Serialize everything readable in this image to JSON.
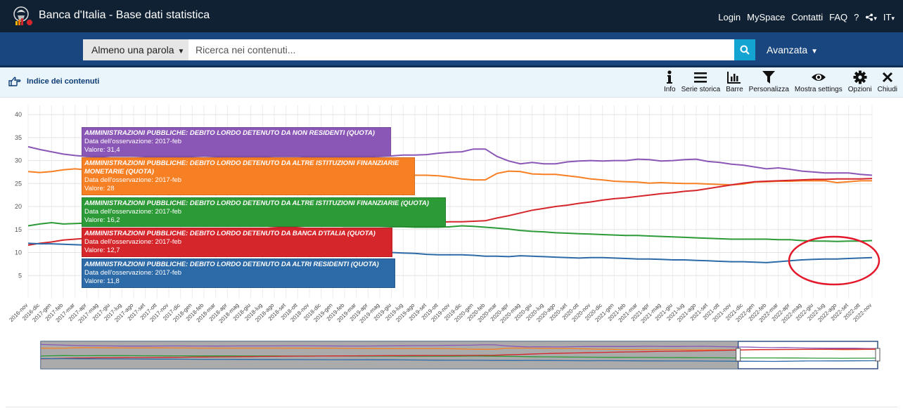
{
  "header": {
    "title": "Banca d'Italia - Base dati statistica",
    "nav": [
      "Login",
      "MySpace",
      "Contatti",
      "FAQ",
      "?"
    ],
    "share_icon": "share-icon",
    "language": "IT"
  },
  "search": {
    "mode": "Almeno una parola",
    "placeholder": "Ricerca nei contenuti...",
    "advanced": "Avanzata"
  },
  "toolbar": {
    "index_label": "Indice dei contenuti",
    "tools": [
      {
        "label": "Info",
        "icon": "info-icon"
      },
      {
        "label": "Serie storica",
        "icon": "list-icon"
      },
      {
        "label": "Barre",
        "icon": "bar-chart-icon"
      },
      {
        "label": "Personalizza",
        "icon": "filter-icon"
      },
      {
        "label": "Mostra settings",
        "icon": "eye-icon"
      },
      {
        "label": "Opzioni",
        "icon": "gear-icon"
      },
      {
        "label": "Chiudi",
        "icon": "close-icon"
      }
    ]
  },
  "tooltips": [
    {
      "title": "AMMINISTRAZIONI PUBBLICHE: DEBITO LORDO DETENUTO DA NON RESIDENTI (QUOTA)",
      "obs": "Data dell'osservazione: 2017-feb",
      "value": "Valore: 31,4",
      "color": "#8b57b6"
    },
    {
      "title": "AMMINISTRAZIONI PUBBLICHE: DEBITO LORDO DETENUTO DA ALTRE ISTITUZIONI FINANZIARIE MONETARIE (QUOTA)",
      "obs": "Data dell'osservazione: 2017-feb",
      "value": "Valore: 28",
      "color": "#f77f24"
    },
    {
      "title": "AMMINISTRAZIONI PUBBLICHE: DEBITO LORDO DETENUTO DA ALTRE ISTITUZIONI FINANZIARIE (QUOTA)",
      "obs": "Data dell'osservazione: 2017-feb",
      "value": "Valore: 16,2",
      "color": "#2c9a37"
    },
    {
      "title": "AMMINISTRAZIONI PUBBLICHE: DEBITO LORDO DETENUTO DA BANCA D'ITALIA (QUOTA)",
      "obs": "Data dell'osservazione: 2017-feb",
      "value": "Valore: 12,7",
      "color": "#d5262c"
    },
    {
      "title": "AMMINISTRAZIONI PUBBLICHE: DEBITO LORDO DETENUTO DA ALTRI RESIDENTI (QUOTA)",
      "obs": "Data dell'osservazione: 2017-feb",
      "value": "Valore: 11,8",
      "color": "#2c6aa8"
    }
  ],
  "chart_data": {
    "type": "line",
    "ylim": [
      0,
      42
    ],
    "yticks": [
      5,
      10,
      15,
      20,
      25,
      30,
      35,
      40
    ],
    "grid": true,
    "x": [
      "2016-nov",
      "2016-dic",
      "2017-gen",
      "2017-feb",
      "2017-mar",
      "2017-apr",
      "2017-mag",
      "2017-giu",
      "2017-lug",
      "2017-ago",
      "2017-set",
      "2017-ott",
      "2017-nov",
      "2017-dic",
      "2018-gen",
      "2018-feb",
      "2018-mar",
      "2018-apr",
      "2018-mag",
      "2018-giu",
      "2018-lug",
      "2018-ago",
      "2018-set",
      "2018-ott",
      "2018-nov",
      "2018-dic",
      "2019-gen",
      "2019-feb",
      "2019-mar",
      "2019-apr",
      "2019-mag",
      "2019-giu",
      "2019-lug",
      "2019-ago",
      "2019-set",
      "2019-ott",
      "2019-nov",
      "2019-dic",
      "2020-gen",
      "2020-feb",
      "2020-mar",
      "2020-apr",
      "2020-mag",
      "2020-giu",
      "2020-lug",
      "2020-ago",
      "2020-set",
      "2020-ott",
      "2020-nov",
      "2020-dic",
      "2021-gen",
      "2021-feb",
      "2021-mar",
      "2021-apr",
      "2021-mag",
      "2021-giu",
      "2021-lug",
      "2021-ago",
      "2021-set",
      "2021-ott",
      "2021-nov",
      "2021-dic",
      "2022-gen",
      "2022-feb",
      "2022-mar",
      "2022-apr",
      "2022-mag",
      "2022-giu",
      "2022-lug",
      "2022-ago",
      "2022-set",
      "2022-ott",
      "2022-nov"
    ],
    "series": [
      {
        "color": "#8b57b6",
        "values": [
          33.0,
          32.4,
          31.9,
          31.4,
          31.1,
          30.9,
          30.8,
          30.6,
          30.6,
          30.6,
          30.7,
          30.8,
          30.8,
          30.7,
          30.7,
          30.6,
          30.7,
          30.8,
          30.8,
          30.8,
          30.8,
          30.9,
          30.9,
          30.9,
          30.8,
          30.8,
          30.7,
          30.7,
          30.7,
          30.8,
          30.9,
          31.0,
          31.2,
          31.2,
          31.3,
          31.6,
          31.8,
          31.9,
          32.5,
          32.5,
          30.9,
          29.9,
          29.3,
          29.6,
          29.3,
          29.3,
          29.7,
          29.9,
          30.0,
          29.9,
          30.0,
          30.0,
          30.3,
          30.2,
          29.9,
          30.0,
          30.2,
          30.3,
          29.8,
          29.6,
          29.2,
          29.0,
          28.6,
          28.2,
          28.4,
          28.1,
          27.7,
          27.5,
          27.3,
          27.3,
          27.3,
          27.0,
          26.8
        ]
      },
      {
        "color": "#f77f24",
        "values": [
          27.6,
          27.4,
          27.6,
          28.0,
          28.2,
          28.0,
          27.9,
          27.8,
          27.8,
          27.8,
          27.9,
          27.8,
          27.7,
          27.7,
          27.6,
          27.6,
          27.6,
          27.6,
          27.6,
          27.5,
          27.5,
          27.4,
          27.4,
          27.3,
          27.3,
          27.2,
          27.1,
          27.0,
          26.9,
          26.8,
          26.8,
          26.8,
          26.8,
          26.8,
          26.8,
          26.7,
          26.4,
          26.0,
          25.8,
          25.8,
          27.2,
          27.7,
          27.6,
          27.1,
          27.0,
          27.0,
          26.7,
          26.4,
          26.0,
          25.8,
          25.5,
          25.4,
          25.3,
          25.1,
          25.2,
          25.1,
          25.0,
          25.0,
          24.9,
          24.8,
          24.7,
          24.9,
          25.3,
          25.4,
          25.5,
          25.5,
          25.6,
          25.6,
          25.6,
          25.2,
          25.4,
          25.6,
          25.6
        ]
      },
      {
        "color": "#2c9a37",
        "values": [
          15.8,
          16.2,
          16.5,
          16.2,
          16.3,
          16.4,
          16.4,
          16.4,
          16.3,
          16.2,
          16.2,
          16.1,
          16.1,
          16.0,
          16.0,
          16.0,
          16.0,
          15.9,
          15.9,
          15.9,
          15.9,
          15.8,
          15.8,
          15.8,
          15.8,
          15.8,
          15.8,
          15.7,
          15.7,
          15.7,
          15.7,
          15.6,
          15.6,
          15.5,
          15.5,
          15.5,
          15.6,
          15.8,
          15.7,
          15.5,
          15.3,
          15.1,
          14.8,
          14.6,
          14.5,
          14.3,
          14.2,
          14.1,
          14.0,
          13.9,
          13.8,
          13.7,
          13.7,
          13.6,
          13.5,
          13.4,
          13.3,
          13.2,
          13.1,
          13.0,
          12.9,
          12.9,
          12.9,
          12.9,
          12.8,
          12.8,
          12.6,
          12.5,
          12.5,
          12.4,
          12.5,
          12.5,
          12.6
        ]
      },
      {
        "color": "#d5262c",
        "values": [
          11.6,
          12.0,
          12.3,
          12.7,
          12.9,
          13.1,
          13.2,
          13.4,
          13.5,
          13.6,
          13.8,
          13.9,
          14.0,
          14.2,
          14.3,
          14.5,
          14.6,
          14.8,
          14.9,
          15.1,
          15.2,
          15.4,
          15.5,
          15.6,
          15.8,
          15.9,
          16.0,
          16.1,
          16.2,
          16.3,
          16.4,
          16.4,
          16.5,
          16.5,
          16.6,
          16.6,
          16.7,
          16.7,
          16.8,
          16.9,
          17.5,
          18.0,
          18.6,
          19.2,
          19.6,
          20.0,
          20.3,
          20.7,
          21.0,
          21.4,
          21.7,
          21.9,
          22.2,
          22.5,
          22.8,
          23.0,
          23.3,
          23.5,
          23.9,
          24.3,
          24.7,
          25.1,
          25.4,
          25.5,
          25.6,
          25.7,
          25.8,
          25.9,
          25.9,
          26.0,
          26.0,
          26.0,
          26.1
        ]
      },
      {
        "color": "#2c6aa8",
        "values": [
          12.0,
          11.9,
          11.9,
          11.8,
          11.7,
          11.6,
          11.5,
          11.5,
          11.4,
          11.3,
          11.2,
          11.2,
          11.1,
          11.0,
          10.9,
          10.9,
          10.8,
          10.7,
          10.7,
          10.6,
          10.6,
          10.5,
          10.5,
          10.4,
          10.4,
          10.3,
          10.3,
          10.2,
          10.2,
          10.1,
          10.1,
          10.0,
          9.9,
          9.8,
          9.6,
          9.5,
          9.5,
          9.5,
          9.4,
          9.2,
          9.2,
          9.1,
          9.3,
          9.2,
          9.1,
          9.0,
          8.9,
          8.8,
          8.9,
          8.9,
          8.8,
          8.7,
          8.6,
          8.6,
          8.5,
          8.4,
          8.4,
          8.3,
          8.2,
          8.1,
          8.0,
          8.0,
          7.9,
          7.8,
          8.0,
          8.2,
          8.4,
          8.5,
          8.6,
          8.6,
          8.7,
          8.8,
          8.9
        ]
      }
    ],
    "navigator_selection": [
      "2021-nov",
      "2022-nov"
    ]
  }
}
